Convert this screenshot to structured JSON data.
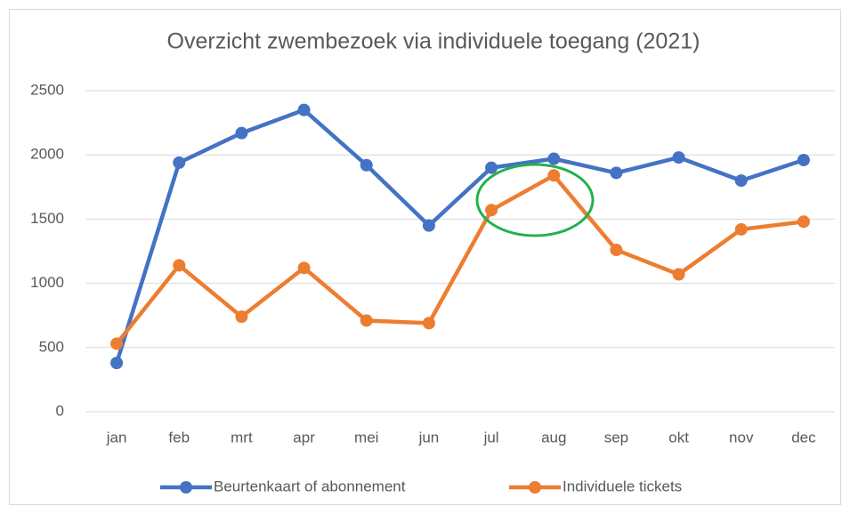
{
  "chart_data": {
    "type": "line",
    "title": "Overzicht zwembezoek via individuele toegang (2021)",
    "categories": [
      "jan",
      "feb",
      "mrt",
      "apr",
      "mei",
      "jun",
      "jul",
      "aug",
      "sep",
      "okt",
      "nov",
      "dec"
    ],
    "series": [
      {
        "name": "Beurtenkaart of abonnement",
        "color": "#4472c4",
        "values": [
          380,
          1940,
          2170,
          2350,
          1920,
          1450,
          1900,
          1970,
          1860,
          1980,
          1800,
          1960
        ]
      },
      {
        "name": "Individuele tickets",
        "color": "#ed7d31",
        "values": [
          530,
          1140,
          740,
          1120,
          710,
          690,
          1570,
          1840,
          1260,
          1070,
          1420,
          1480
        ]
      }
    ],
    "ylim": [
      0,
      2500
    ],
    "yticks": [
      0,
      500,
      1000,
      1500,
      2000,
      2500
    ],
    "grid": true,
    "legend": "bottom"
  }
}
